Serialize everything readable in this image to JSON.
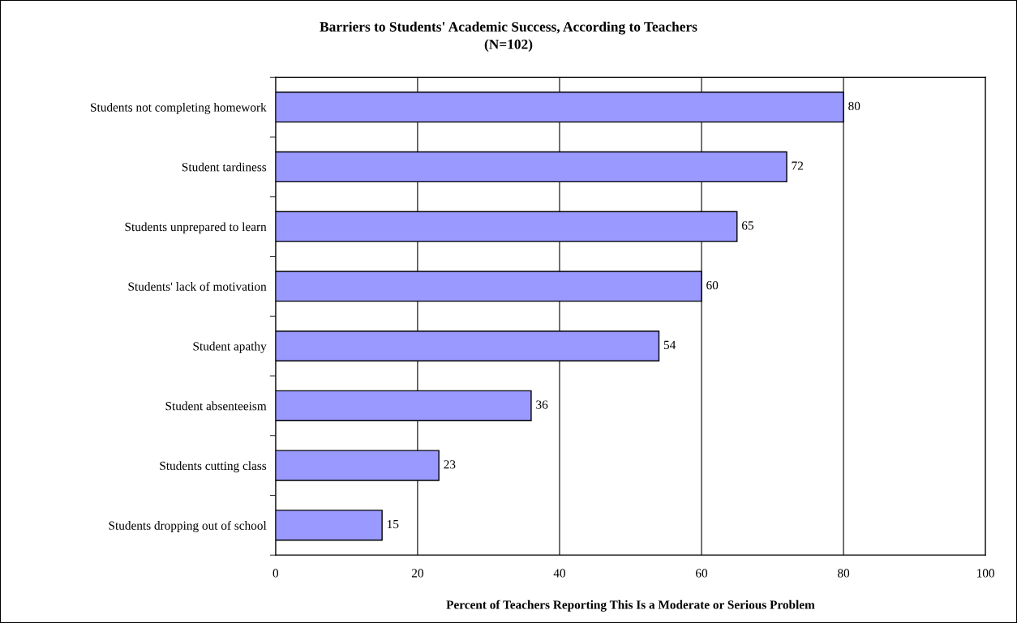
{
  "chart_data": {
    "type": "bar",
    "orientation": "horizontal",
    "title": "Barriers to Students' Academic Success, According to Teachers",
    "subtitle": "(N=102)",
    "xlabel": "Percent of Teachers Reporting This Is a Moderate or Serious Problem",
    "categories": [
      "Students not completing homework",
      "Student tardiness",
      "Students unprepared to learn",
      "Students' lack of motivation",
      "Student apathy",
      "Student absenteeism",
      "Students cutting class",
      "Students dropping out of school"
    ],
    "values": [
      80,
      72,
      65,
      60,
      54,
      36,
      23,
      15
    ],
    "color": "#9999ff",
    "xlim": [
      0,
      100
    ],
    "xticks": [
      0,
      20,
      40,
      60,
      80,
      100
    ],
    "grid": "x",
    "data_labels": true,
    "legend": false
  }
}
